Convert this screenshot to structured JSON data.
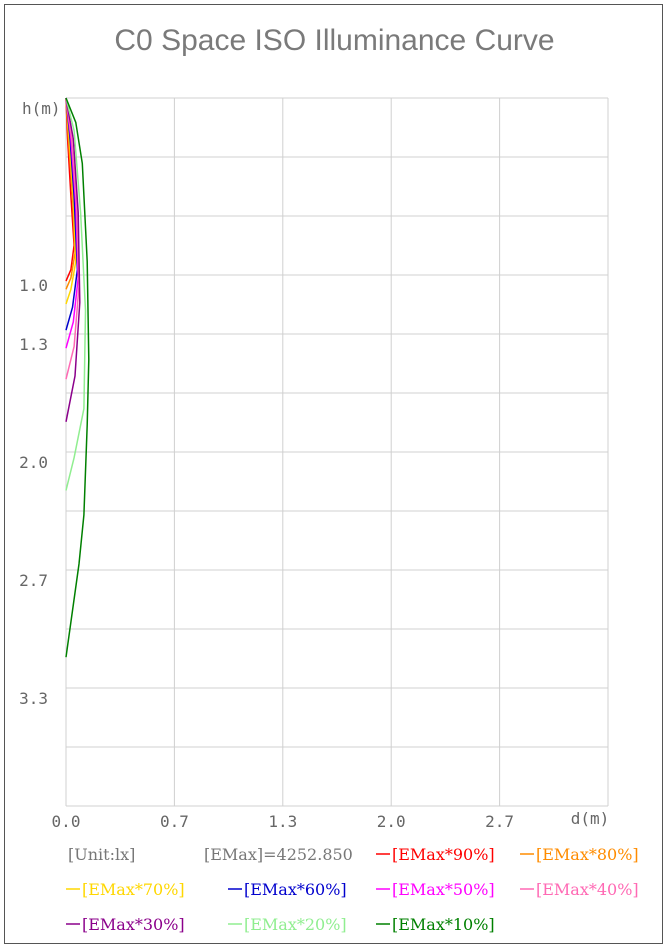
{
  "chart_data": {
    "type": "line",
    "title": "C0 Space ISO Illuminance Curve",
    "xlabel": "d(m)",
    "ylabel": "h(m)",
    "xlim": [
      0,
      3.33
    ],
    "ylim": [
      0,
      4.33
    ],
    "y_inverted": true,
    "x_ticks": [
      "0.0",
      "0.7",
      "1.3",
      "2.0",
      "2.7"
    ],
    "y_ticks": [
      "1.0",
      "1.3",
      "2.0",
      "2.7",
      "3.3"
    ],
    "unit": "[Unit:lx]",
    "emax": "[EMax]=4252.850",
    "grid": true,
    "series": [
      {
        "name": "[EMax*90%]",
        "color": "#ff0000",
        "points": [
          [
            0,
            0
          ],
          [
            0.01,
            0.25
          ],
          [
            0.03,
            0.6
          ],
          [
            0.05,
            0.9
          ],
          [
            0.03,
            1.05
          ],
          [
            0,
            1.12
          ]
        ]
      },
      {
        "name": "[EMax*80%]",
        "color": "#ff8c00",
        "points": [
          [
            0,
            0
          ],
          [
            0.015,
            0.25
          ],
          [
            0.04,
            0.6
          ],
          [
            0.055,
            0.95
          ],
          [
            0.03,
            1.1
          ],
          [
            0,
            1.17
          ]
        ]
      },
      {
        "name": "[EMax*70%]",
        "color": "#ffd700",
        "points": [
          [
            0,
            0
          ],
          [
            0.02,
            0.25
          ],
          [
            0.045,
            0.6
          ],
          [
            0.06,
            1.0
          ],
          [
            0.03,
            1.17
          ],
          [
            0,
            1.26
          ]
        ]
      },
      {
        "name": "[EMax*60%]",
        "color": "#0000cd",
        "points": [
          [
            0,
            0
          ],
          [
            0.025,
            0.25
          ],
          [
            0.05,
            0.6
          ],
          [
            0.07,
            1.05
          ],
          [
            0.04,
            1.28
          ],
          [
            0,
            1.42
          ]
        ]
      },
      {
        "name": "[EMax*50%]",
        "color": "#ff00ff",
        "points": [
          [
            0,
            0
          ],
          [
            0.03,
            0.25
          ],
          [
            0.06,
            0.65
          ],
          [
            0.075,
            1.1
          ],
          [
            0.045,
            1.37
          ],
          [
            0,
            1.53
          ]
        ]
      },
      {
        "name": "[EMax*40%]",
        "color": "#ff69b4",
        "points": [
          [
            0,
            0
          ],
          [
            0.035,
            0.25
          ],
          [
            0.065,
            0.65
          ],
          [
            0.08,
            1.15
          ],
          [
            0.05,
            1.52
          ],
          [
            0,
            1.72
          ]
        ]
      },
      {
        "name": "[EMax*30%]",
        "color": "#8b008b",
        "points": [
          [
            0,
            0
          ],
          [
            0.045,
            0.25
          ],
          [
            0.075,
            0.7
          ],
          [
            0.085,
            1.25
          ],
          [
            0.055,
            1.7
          ],
          [
            0,
            1.98
          ]
        ]
      },
      {
        "name": "[EMax*20%]",
        "color": "#90ee90",
        "points": [
          [
            0,
            0
          ],
          [
            0.05,
            0.2
          ],
          [
            0.09,
            0.7
          ],
          [
            0.12,
            1.3
          ],
          [
            0.11,
            1.9
          ],
          [
            0.05,
            2.2
          ],
          [
            0,
            2.4
          ]
        ]
      },
      {
        "name": "[EMax*10%]",
        "color": "#008000",
        "points": [
          [
            0,
            0
          ],
          [
            0.06,
            0.15
          ],
          [
            0.1,
            0.4
          ],
          [
            0.13,
            1.0
          ],
          [
            0.14,
            1.6
          ],
          [
            0.13,
            2.0
          ],
          [
            0.11,
            2.55
          ],
          [
            0.08,
            2.85
          ],
          [
            0,
            3.42
          ]
        ]
      }
    ]
  }
}
